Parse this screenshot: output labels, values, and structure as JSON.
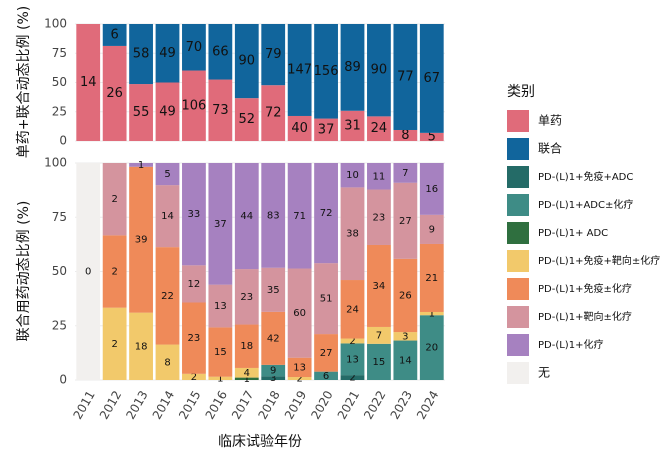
{
  "chart_data": [
    {
      "type": "bar",
      "stacked": true,
      "normalize": true,
      "ylabel": "单药+联合动态比例 (%)",
      "ylim": [
        0,
        100
      ],
      "yticks": [
        0,
        25,
        50,
        75,
        100
      ],
      "grid": true,
      "series": [
        {
          "name": "单药",
          "color": "#e06b7a",
          "values": [
            14,
            26,
            55,
            49,
            106,
            73,
            52,
            72,
            40,
            37,
            31,
            24,
            8,
            5
          ]
        },
        {
          "name": "联合",
          "color": "#11659c",
          "values": [
            null,
            6,
            58,
            49,
            70,
            66,
            90,
            79,
            147,
            156,
            89,
            90,
            77,
            67
          ]
        }
      ]
    },
    {
      "type": "bar",
      "stacked": true,
      "normalize": true,
      "ylabel": "联合用药动态比例 (%)",
      "xlabel": "临床试验年份",
      "legend_title": "类别",
      "categories": [
        "2011",
        "2012",
        "2013",
        "2014",
        "2015",
        "2016",
        "2017",
        "2018",
        "2019",
        "2020",
        "2021",
        "2022",
        "2023",
        "2024"
      ],
      "ylim": [
        0,
        100
      ],
      "yticks": [
        0,
        25,
        50,
        75,
        100
      ],
      "grid": true,
      "series": [
        {
          "name": "PD-(L)1+免疫+ADC",
          "color": "#246b67",
          "values": [
            null,
            null,
            null,
            null,
            null,
            null,
            null,
            3,
            null,
            null,
            2,
            null,
            null,
            null
          ]
        },
        {
          "name": "PD-(L)1+ADC±化疗",
          "color": "#3e8c86",
          "values": [
            null,
            null,
            null,
            null,
            null,
            null,
            null,
            9,
            null,
            6,
            13,
            15,
            14,
            20
          ]
        },
        {
          "name": "PD-(L)1+ ADC",
          "color": "#2f6f3f",
          "values": [
            null,
            null,
            null,
            null,
            null,
            null,
            1,
            null,
            null,
            null,
            null,
            null,
            null,
            null
          ]
        },
        {
          "name": "PD-(L)1+免疫+靶向±化疗",
          "color": "#f2c96b",
          "values": [
            null,
            2,
            18,
            8,
            2,
            1,
            4,
            null,
            2,
            null,
            2,
            7,
            3,
            1
          ]
        },
        {
          "name": "PD-(L)1+免疫±化疗",
          "color": "#ef8a59",
          "values": [
            null,
            2,
            39,
            22,
            23,
            15,
            18,
            42,
            13,
            27,
            24,
            34,
            26,
            21
          ]
        },
        {
          "name": "PD-(L)1+靶向±化疗",
          "color": "#d4949e",
          "values": [
            null,
            2,
            null,
            14,
            12,
            13,
            23,
            35,
            60,
            51,
            38,
            23,
            27,
            9
          ]
        },
        {
          "name": "PD-(L)1+化疗",
          "color": "#a681c0",
          "values": [
            null,
            null,
            1,
            5,
            33,
            37,
            44,
            83,
            71,
            72,
            10,
            11,
            7,
            16
          ]
        },
        {
          "name": "无",
          "color": "#f2f0ee",
          "values": [
            0,
            null,
            null,
            null,
            null,
            null,
            null,
            null,
            null,
            null,
            null,
            null,
            null,
            null
          ]
        }
      ]
    }
  ]
}
